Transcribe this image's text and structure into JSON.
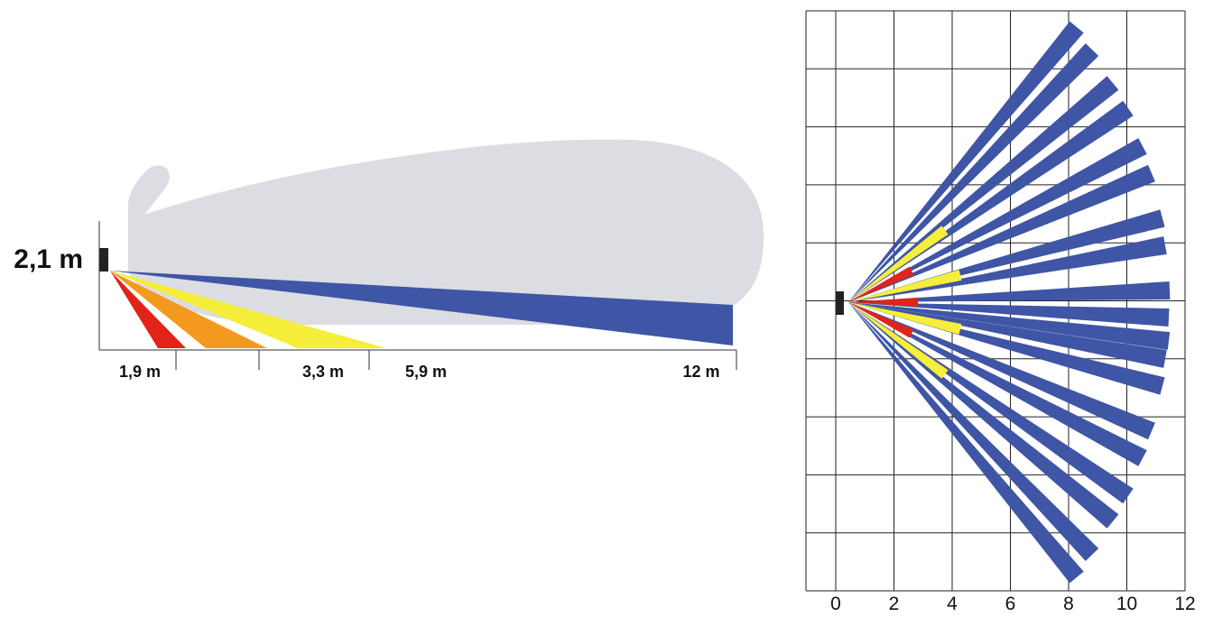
{
  "side_view": {
    "height_label": "2,1 m",
    "distance_labels": [
      "1,9 m",
      "3,3 m",
      "5,9 m",
      "12 m"
    ]
  },
  "top_view": {
    "x_labels": [
      0,
      2,
      4,
      6,
      8,
      10,
      12
    ]
  }
}
